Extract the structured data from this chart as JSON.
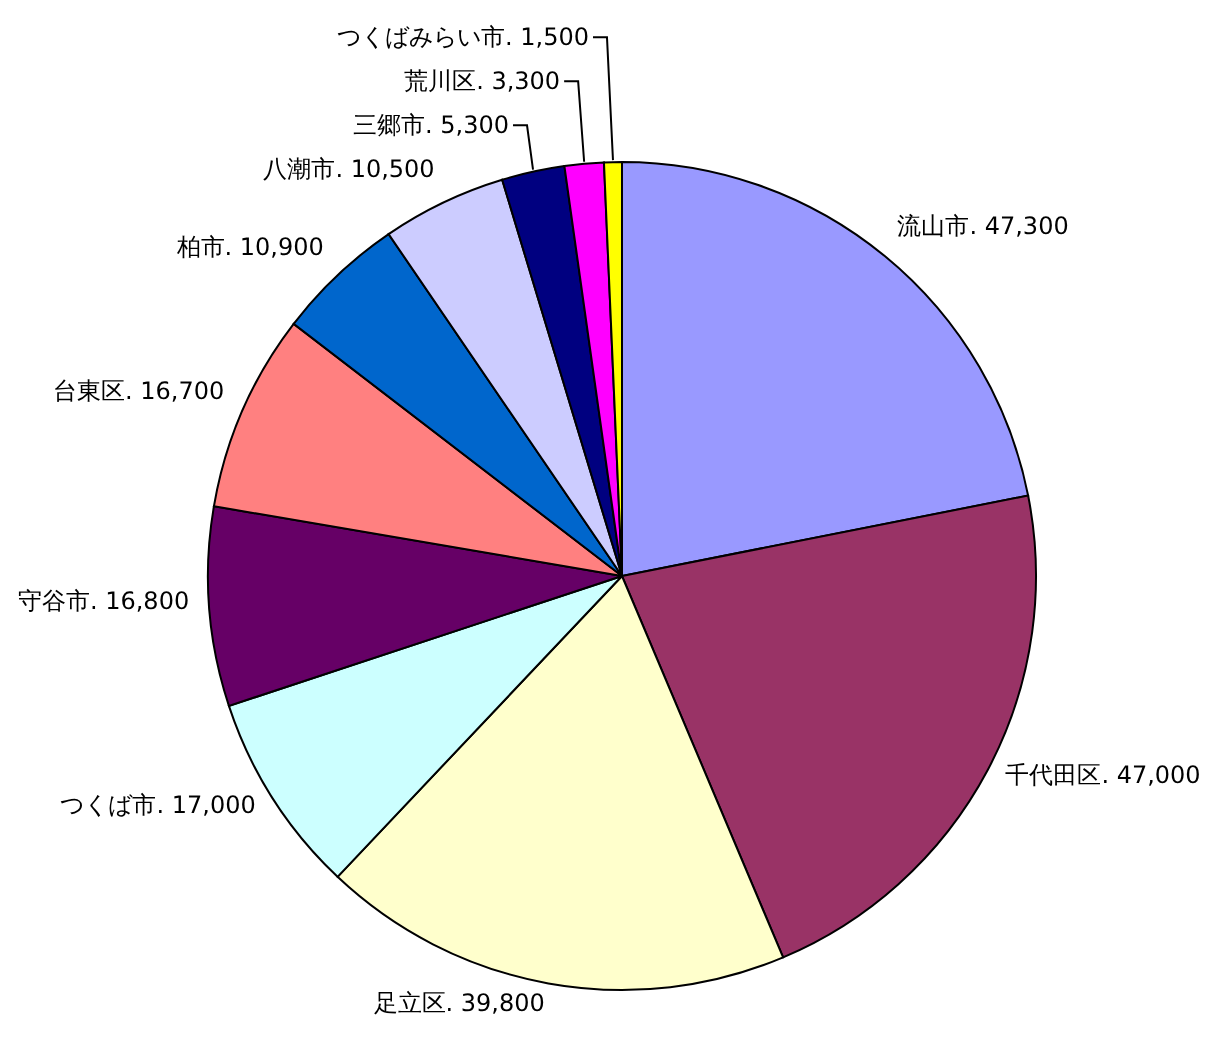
{
  "chart_data": {
    "type": "pie",
    "categories": [
      "流山市",
      "千代田区",
      "足立区",
      "つくば市",
      "守谷市",
      "台東区",
      "柏市",
      "八潮市",
      "三郷市",
      "荒川区",
      "つくばみらい市"
    ],
    "values": [
      47300,
      47000,
      39800,
      17000,
      16800,
      16700,
      10900,
      10500,
      5300,
      3300,
      1500
    ],
    "colors": [
      "#9999ff",
      "#993366",
      "#ffffcc",
      "#ccffff",
      "#660066",
      "#ff8080",
      "#0066cc",
      "#ccccff",
      "#000080",
      "#ff00ff",
      "#ffff00"
    ],
    "value_labels": [
      ". 47,300",
      ". 47,000",
      ". 39,800",
      ". 17,000",
      ". 16,800",
      ". 16,700",
      ". 10,900",
      ". 10,500",
      ". 5,300",
      ". 3,300",
      ". 1,500"
    ],
    "legend": false
  }
}
